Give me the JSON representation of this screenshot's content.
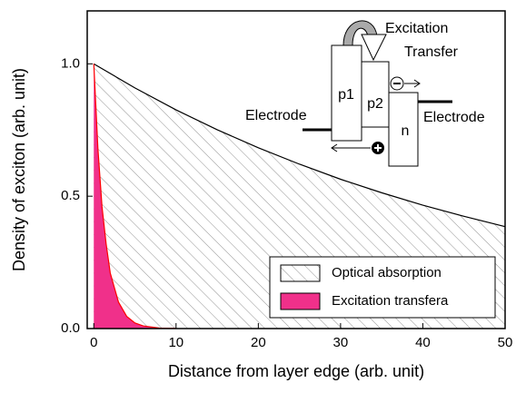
{
  "chart_data": {
    "type": "area",
    "xlabel": "Distance from layer edge (arb. unit)",
    "ylabel": "Density of exciton (arb. unit)",
    "xlim": [
      -0.8,
      50
    ],
    "ylim": [
      0,
      1.2
    ],
    "xticks": [
      0,
      10,
      20,
      30,
      40,
      50
    ],
    "yticks": [
      {
        "value": 0,
        "label": "0.0"
      },
      {
        "value": 0.5,
        "label": "0.5"
      },
      {
        "value": 1,
        "label": "1.0"
      }
    ],
    "legend": "lower right",
    "series": [
      {
        "name": "Optical absorption",
        "color": "#000000",
        "hatch": true,
        "x": [
          0,
          5,
          10,
          15,
          20,
          25,
          30,
          35,
          40,
          45,
          50
        ],
        "values": [
          1,
          0.909,
          0.826,
          0.751,
          0.683,
          0.621,
          0.564,
          0.513,
          0.466,
          0.424,
          0.385
        ]
      },
      {
        "name": "Excitation transfera",
        "color": "#f0308a",
        "line_color": "#ff0000",
        "hatch": false,
        "x": [
          0,
          0.5,
          1,
          1.5,
          2,
          3,
          4,
          5,
          6,
          8,
          10
        ],
        "values": [
          1,
          0.68,
          0.46,
          0.32,
          0.21,
          0.1,
          0.046,
          0.021,
          0.01,
          0.002,
          0.0005
        ]
      }
    ]
  },
  "inset": {
    "excitation": "Excitation",
    "transfer": "Transfer",
    "electrode_left": "Electrode",
    "electrode_right": "Electrode",
    "p1": "p1",
    "p2": "p2",
    "n": "n"
  }
}
